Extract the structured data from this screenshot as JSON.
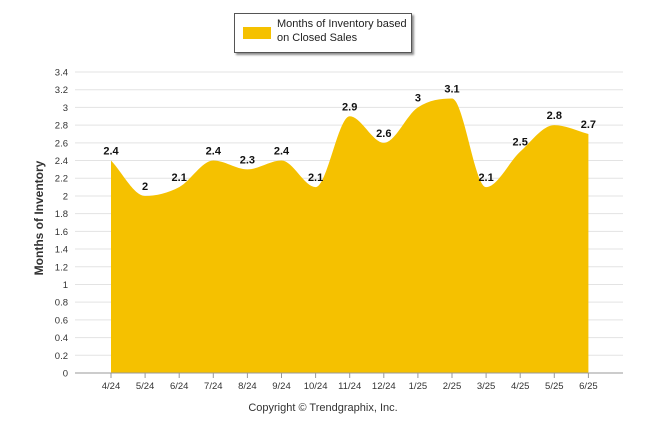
{
  "chart_data": {
    "type": "area",
    "legend": {
      "placement": "top-center",
      "entries": [
        "Months of Inventory based on Closed Sales"
      ]
    },
    "series": [
      {
        "name": "Months of Inventory based on Closed Sales",
        "color": "#f5c100",
        "values": [
          2.4,
          2.0,
          2.1,
          2.4,
          2.3,
          2.4,
          2.1,
          2.9,
          2.6,
          3.0,
          3.1,
          2.1,
          2.5,
          2.8,
          2.7
        ]
      }
    ],
    "categories": [
      "4/24",
      "5/24",
      "6/24",
      "7/24",
      "8/24",
      "9/24",
      "10/24",
      "11/24",
      "12/24",
      "1/25",
      "2/25",
      "3/25",
      "4/25",
      "5/25",
      "6/25"
    ],
    "data_labels": [
      "2.4",
      "2",
      "2.1",
      "2.4",
      "2.3",
      "2.4",
      "2.1",
      "2.9",
      "2.6",
      "3",
      "3.1",
      "2.1",
      "2.5",
      "2.8",
      "2.7"
    ],
    "ylabel": "Months of Inventory",
    "xlabel": "",
    "ylim": [
      0,
      3.4
    ],
    "yticks": [
      "0",
      "0.2",
      "0.4",
      "0.6",
      "0.8",
      "1",
      "1.2",
      "1.4",
      "1.6",
      "1.8",
      "2",
      "2.2",
      "2.4",
      "2.6",
      "2.8",
      "3",
      "3.2",
      "3.4"
    ],
    "grid": true
  },
  "footer": {
    "copyright": "Copyright © Trendgraphix, Inc."
  }
}
